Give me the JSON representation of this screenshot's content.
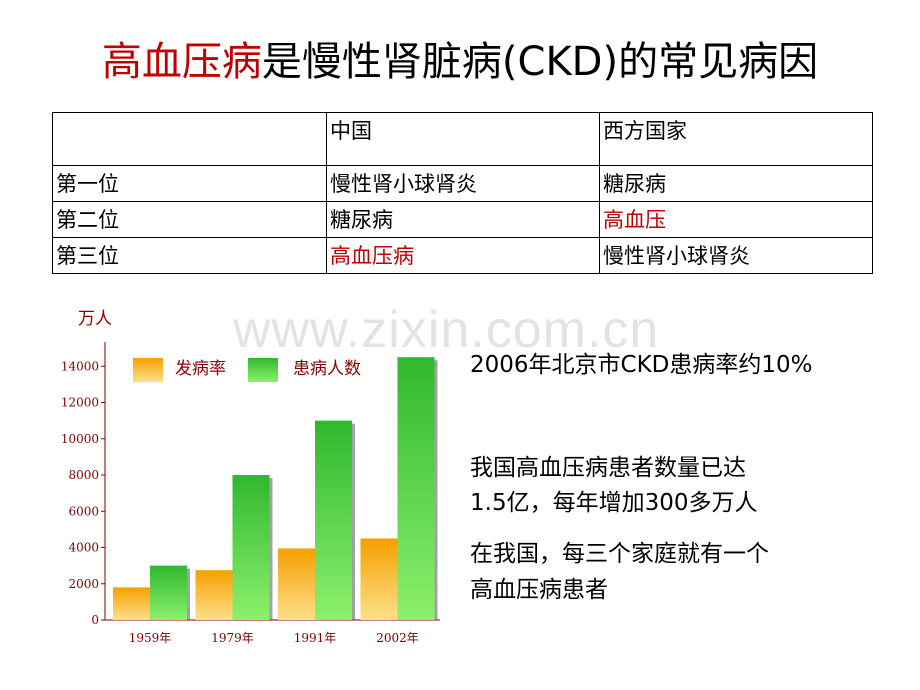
{
  "title": {
    "highlight": "高血压病",
    "rest": "是慢性肾脏病(CKD)的常见病因"
  },
  "table": {
    "header": [
      "",
      "中国",
      "西方国家"
    ],
    "rows": [
      {
        "cells": [
          "第一位",
          "慢性肾小球肾炎",
          "糖尿病"
        ],
        "red": []
      },
      {
        "cells": [
          "第二位",
          "糖尿病",
          "高血压"
        ],
        "red": [
          2
        ]
      },
      {
        "cells": [
          "第三位",
          "高血压病",
          "慢性肾小球肾炎"
        ],
        "red": [
          1
        ]
      }
    ]
  },
  "watermark": "www.zixin.com.cn",
  "facts": {
    "beijing": "2006年北京市CKD患病率约10%",
    "count_line1": "我国高血压病患者数量已达",
    "count_line2": "1.5亿，每年增加300多万人",
    "family_line1": "在我国，每三个家庭就有一个",
    "family_line2": "高血压病患者"
  },
  "chart_data": {
    "type": "bar",
    "ylabel": "万人",
    "categories": [
      "1959年",
      "1979年",
      "1991年",
      "2002年"
    ],
    "series": [
      {
        "name": "发病率",
        "values": [
          1800,
          2750,
          3950,
          4500
        ]
      },
      {
        "name": "患病人数",
        "values": [
          3000,
          8000,
          11000,
          14500
        ]
      }
    ],
    "ylim": [
      0,
      16000
    ],
    "yticks": [
      0,
      2000,
      4000,
      6000,
      8000,
      10000,
      12000,
      14000
    ],
    "legend": "top-left",
    "grid": false,
    "colors": {
      "series0_top": "#f5a000",
      "series0_bottom": "#fde08a",
      "series1_top": "#2fb82f",
      "series1_bottom": "#8cf06c",
      "axis": "#800000",
      "legend_text": "#8b0000"
    }
  }
}
